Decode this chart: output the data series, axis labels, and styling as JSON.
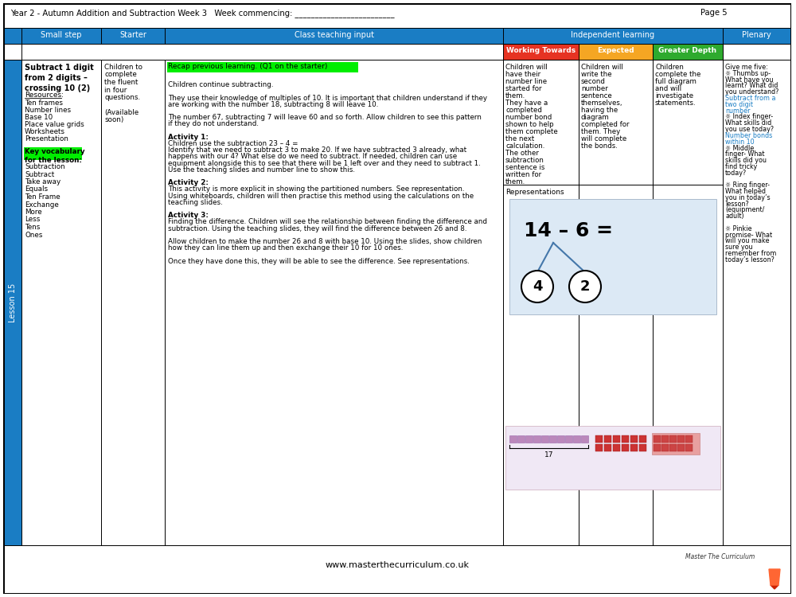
{
  "header_text": "Year 2 - Autumn Addition and Subtraction Week 3   Week commencing: _________________________",
  "page_text": "Page 5",
  "header_bg": "#1a7dc4",
  "working_towards_bg": "#e63322",
  "expected_bg": "#f5a623",
  "greater_depth_bg": "#2eaa2e",
  "green_highlight": "#00ee00",
  "lesson_bar_color": "#1a7dc4",
  "small_step_title": "Subtract 1 digit\nfrom 2 digits –\ncrossing 10 (2)",
  "resources_label": "Resources:",
  "resources_list": [
    "Ten frames",
    "Number lines",
    "Base 10",
    "Place value grids",
    "Worksheets",
    "Presentation"
  ],
  "key_vocab_list": [
    "Subtraction",
    "Subtract",
    "Take away",
    "Equals",
    "Ten Frame",
    "Exchange",
    "More",
    "Less",
    "Tens",
    "Ones"
  ],
  "lesson_label": "Lesson 15",
  "starter_lines": [
    "Children to",
    "complete",
    "the fluent",
    "in four",
    "questions.",
    "",
    "(Available",
    "soon)"
  ],
  "teaching_green_text": "Recap previous learning. (Q1 on the starter)",
  "teaching_lines": [
    [
      "",
      false
    ],
    [
      "Children continue subtracting.",
      false
    ],
    [
      "",
      false
    ],
    [
      "They use their knowledge of multiples of 10. It is important that children understand if they",
      false
    ],
    [
      "are working with the number 18, subtracting 8 will leave 10.",
      false
    ],
    [
      "",
      false
    ],
    [
      "The number 67, subtracting 7 will leave 60 and so forth. Allow children to see this pattern",
      false
    ],
    [
      "if they do not understand.",
      false
    ],
    [
      "",
      false
    ],
    [
      "Activity 1:",
      false
    ],
    [
      "Children use the subtraction 23 – 4 =",
      false
    ],
    [
      "Identify that we need to subtract 3 to make 20. If we have subtracted 3 already, what",
      false
    ],
    [
      "happens with our 4? What else do we need to subtract. If needed, children can use",
      false
    ],
    [
      "equipment alongside this to see that there will be 1 left over and they need to subtract 1.",
      false
    ],
    [
      "Use the teaching slides and number line to show this.",
      false
    ],
    [
      "",
      false
    ],
    [
      "Activity 2:",
      false
    ],
    [
      "This activity is more explicit in showing the partitioned numbers. See representation.",
      false
    ],
    [
      "Using whiteboards, children will then practise this method using the calculations on the",
      false
    ],
    [
      "teaching slides.",
      false
    ],
    [
      "",
      false
    ],
    [
      "Activity 3:",
      false
    ],
    [
      "Finding the difference. Children will see the relationship between finding the difference and",
      false
    ],
    [
      "subtraction. Using the teaching slides, they will find the difference between 26 and 8.",
      false
    ],
    [
      "",
      false
    ],
    [
      "Allow children to make the number 26 and 8 with base 10. Using the slides, show children",
      false
    ],
    [
      "how they can line them up and then exchange their 10 for 10 ones.",
      false
    ],
    [
      "",
      false
    ],
    [
      "Once they have done this, they will be able to see the difference. See representations.",
      false
    ]
  ],
  "working_towards_lines": [
    "Children will",
    "have their",
    "number line",
    "started for",
    "them.",
    "They have a",
    "completed",
    "number bond",
    "shown to help",
    "them complete",
    "the next",
    "calculation.",
    "The other",
    "subtraction",
    "sentence is",
    "written for",
    "them."
  ],
  "expected_lines": [
    "Children will",
    "write the",
    "second",
    "number",
    "sentence",
    "themselves,",
    "having the",
    "diagram",
    "completed for",
    "them. They",
    "will complete",
    "the bonds."
  ],
  "greater_depth_lines": [
    "Children",
    "complete the",
    "full diagram",
    "and will",
    "investigate",
    "statements."
  ],
  "representations_text": "Representations",
  "plenary_lines": [
    [
      "Give me five:",
      "black"
    ],
    [
      "☼ Thumbs up-",
      "black"
    ],
    [
      "What have you",
      "black"
    ],
    [
      "learnt? What did",
      "black"
    ],
    [
      "you understand?",
      "black"
    ],
    [
      "Subtract from a",
      "#1a7dc4"
    ],
    [
      "two digit",
      "#1a7dc4"
    ],
    [
      "number",
      "#1a7dc4"
    ],
    [
      "☼ Index finger-",
      "black"
    ],
    [
      "What skills did",
      "black"
    ],
    [
      "you use today?",
      "black"
    ],
    [
      "Number bonds",
      "#1a7dc4"
    ],
    [
      "within 10",
      "#1a7dc4"
    ],
    [
      "☼ Middle",
      "black"
    ],
    [
      "finger- What",
      "black"
    ],
    [
      "skills did you",
      "black"
    ],
    [
      "find tricky",
      "black"
    ],
    [
      "today?",
      "black"
    ],
    [
      "",
      "black"
    ],
    [
      "☼ Ring finger-",
      "black"
    ],
    [
      "What helped",
      "black"
    ],
    [
      "you in today’s",
      "black"
    ],
    [
      "lesson?",
      "black"
    ],
    [
      "(equipment/",
      "black"
    ],
    [
      "adult)",
      "black"
    ],
    [
      "",
      "black"
    ],
    [
      "☼ Pinkie",
      "black"
    ],
    [
      "promise- What",
      "black"
    ],
    [
      "will you make",
      "black"
    ],
    [
      "sure you",
      "black"
    ],
    [
      "remember from",
      "black"
    ],
    [
      "today’s lesson?",
      "black"
    ]
  ],
  "footer_text": "www.masterthecurriculum.co.uk"
}
